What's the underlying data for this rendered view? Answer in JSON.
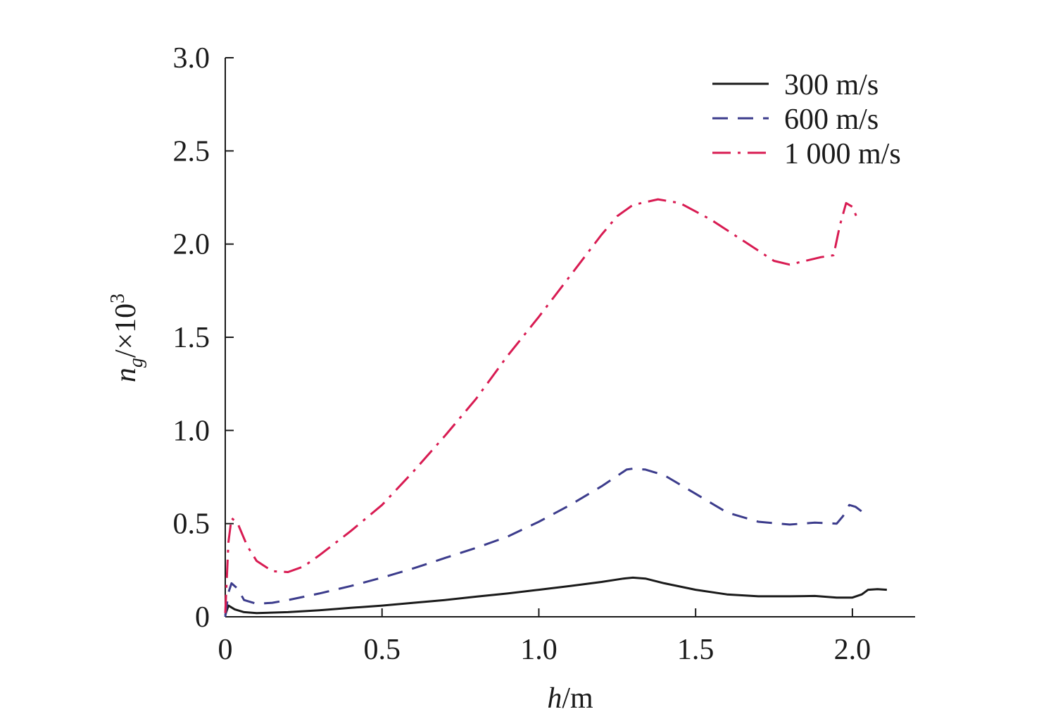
{
  "chart_data": {
    "type": "line",
    "xlabel": {
      "var": "h",
      "unit": "/m"
    },
    "ylabel": {
      "var": "n",
      "sub": "g",
      "unit": "/×10",
      "sup": "3"
    },
    "xlim": [
      0,
      2.2
    ],
    "ylim": [
      0,
      3.0
    ],
    "xticks": [
      0,
      0.5,
      1.0,
      1.5,
      2.0
    ],
    "xtick_labels": [
      "0",
      "0.5",
      "1.0",
      "1.5",
      "2.0"
    ],
    "yticks": [
      0,
      0.5,
      1.0,
      1.5,
      2.0,
      2.5,
      3.0
    ],
    "ytick_labels": [
      "0",
      "0.5",
      "1.0",
      "1.5",
      "2.0",
      "2.5",
      "3.0"
    ],
    "grid": false,
    "legend_position": "top-right",
    "series": [
      {
        "name": "300 m/s",
        "color": "#1a1a1a",
        "dash": "solid",
        "points": [
          [
            0.0,
            0.01
          ],
          [
            0.01,
            0.06
          ],
          [
            0.03,
            0.04
          ],
          [
            0.06,
            0.025
          ],
          [
            0.1,
            0.02
          ],
          [
            0.2,
            0.025
          ],
          [
            0.3,
            0.035
          ],
          [
            0.4,
            0.048
          ],
          [
            0.5,
            0.06
          ],
          [
            0.6,
            0.075
          ],
          [
            0.7,
            0.09
          ],
          [
            0.8,
            0.108
          ],
          [
            0.9,
            0.125
          ],
          [
            1.0,
            0.145
          ],
          [
            1.1,
            0.165
          ],
          [
            1.2,
            0.187
          ],
          [
            1.27,
            0.205
          ],
          [
            1.3,
            0.21
          ],
          [
            1.34,
            0.205
          ],
          [
            1.4,
            0.18
          ],
          [
            1.5,
            0.145
          ],
          [
            1.6,
            0.12
          ],
          [
            1.7,
            0.11
          ],
          [
            1.8,
            0.11
          ],
          [
            1.88,
            0.112
          ],
          [
            1.95,
            0.103
          ],
          [
            2.0,
            0.103
          ],
          [
            2.03,
            0.12
          ],
          [
            2.05,
            0.145
          ],
          [
            2.08,
            0.148
          ],
          [
            2.11,
            0.145
          ]
        ]
      },
      {
        "name": "600 m/s",
        "color": "#3c3c8c",
        "dash": "dashed",
        "points": [
          [
            0.0,
            0.0
          ],
          [
            0.01,
            0.13
          ],
          [
            0.02,
            0.18
          ],
          [
            0.04,
            0.15
          ],
          [
            0.06,
            0.09
          ],
          [
            0.1,
            0.07
          ],
          [
            0.15,
            0.075
          ],
          [
            0.2,
            0.09
          ],
          [
            0.3,
            0.125
          ],
          [
            0.4,
            0.165
          ],
          [
            0.5,
            0.21
          ],
          [
            0.6,
            0.26
          ],
          [
            0.7,
            0.315
          ],
          [
            0.8,
            0.37
          ],
          [
            0.9,
            0.43
          ],
          [
            1.0,
            0.51
          ],
          [
            1.1,
            0.6
          ],
          [
            1.2,
            0.7
          ],
          [
            1.28,
            0.79
          ],
          [
            1.3,
            0.795
          ],
          [
            1.34,
            0.79
          ],
          [
            1.4,
            0.76
          ],
          [
            1.5,
            0.66
          ],
          [
            1.6,
            0.56
          ],
          [
            1.7,
            0.51
          ],
          [
            1.8,
            0.495
          ],
          [
            1.88,
            0.505
          ],
          [
            1.95,
            0.5
          ],
          [
            1.97,
            0.54
          ],
          [
            1.99,
            0.6
          ],
          [
            2.01,
            0.59
          ],
          [
            2.03,
            0.565
          ]
        ]
      },
      {
        "name": "1 000 m/s",
        "color": "#d81b52",
        "dash": "dashdot",
        "points": [
          [
            0.0,
            0.02
          ],
          [
            0.01,
            0.4
          ],
          [
            0.02,
            0.53
          ],
          [
            0.04,
            0.5
          ],
          [
            0.07,
            0.38
          ],
          [
            0.1,
            0.3
          ],
          [
            0.15,
            0.245
          ],
          [
            0.2,
            0.24
          ],
          [
            0.25,
            0.27
          ],
          [
            0.3,
            0.33
          ],
          [
            0.4,
            0.46
          ],
          [
            0.5,
            0.6
          ],
          [
            0.6,
            0.78
          ],
          [
            0.7,
            0.97
          ],
          [
            0.8,
            1.17
          ],
          [
            0.9,
            1.4
          ],
          [
            1.0,
            1.61
          ],
          [
            1.1,
            1.83
          ],
          [
            1.2,
            2.05
          ],
          [
            1.25,
            2.15
          ],
          [
            1.3,
            2.21
          ],
          [
            1.38,
            2.24
          ],
          [
            1.45,
            2.22
          ],
          [
            1.55,
            2.13
          ],
          [
            1.65,
            2.02
          ],
          [
            1.75,
            1.91
          ],
          [
            1.8,
            1.89
          ],
          [
            1.85,
            1.91
          ],
          [
            1.9,
            1.93
          ],
          [
            1.94,
            1.94
          ],
          [
            1.96,
            2.1
          ],
          [
            1.98,
            2.22
          ],
          [
            2.0,
            2.2
          ],
          [
            2.02,
            2.12
          ]
        ]
      }
    ]
  }
}
